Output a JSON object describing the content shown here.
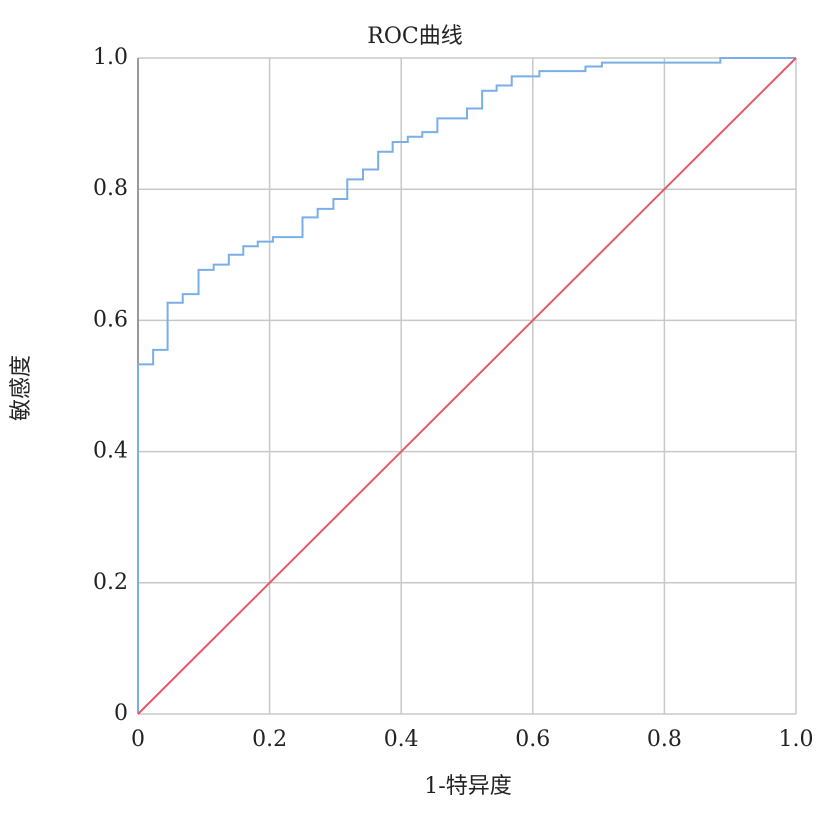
{
  "chart_data": {
    "type": "line",
    "title": "ROC曲线",
    "x_label": "1-特异度",
    "y_label": "敏感度",
    "xlim": [
      0,
      1
    ],
    "ylim": [
      0,
      1
    ],
    "xticks": [
      0,
      0.2,
      0.4,
      0.6,
      0.8,
      {
        "value": 1,
        "label": "1.0"
      }
    ],
    "yticks": [
      0,
      0.2,
      0.4,
      0.6,
      0.8,
      {
        "value": 1,
        "label": "1.0"
      }
    ],
    "grid": true,
    "series": [
      {
        "color": "#7aaee8",
        "x": [
          0,
          0,
          0.023,
          0.023,
          0.045,
          0.045,
          0.068,
          0.068,
          0.092,
          0.092,
          0.115,
          0.115,
          0.138,
          0.138,
          0.16,
          0.16,
          0.182,
          0.182,
          0.205,
          0.205,
          0.25,
          0.25,
          0.273,
          0.273,
          0.297,
          0.297,
          0.318,
          0.318,
          0.342,
          0.342,
          0.365,
          0.365,
          0.387,
          0.387,
          0.41,
          0.41,
          0.432,
          0.432,
          0.455,
          0.455,
          0.5,
          0.5,
          0.523,
          0.523,
          0.545,
          0.545,
          0.568,
          0.568,
          0.61,
          0.61,
          0.68,
          0.68,
          0.705,
          0.705,
          0.885,
          0.885,
          1
        ],
        "values": [
          0,
          0.533,
          0.533,
          0.555,
          0.555,
          0.627,
          0.627,
          0.64,
          0.64,
          0.677,
          0.677,
          0.685,
          0.685,
          0.7,
          0.7,
          0.713,
          0.713,
          0.72,
          0.72,
          0.727,
          0.727,
          0.757,
          0.757,
          0.77,
          0.77,
          0.785,
          0.785,
          0.815,
          0.815,
          0.83,
          0.83,
          0.857,
          0.857,
          0.872,
          0.872,
          0.88,
          0.88,
          0.887,
          0.887,
          0.908,
          0.908,
          0.923,
          0.923,
          0.95,
          0.95,
          0.958,
          0.958,
          0.972,
          0.972,
          0.98,
          0.98,
          0.987,
          0.987,
          0.993,
          0.993,
          1,
          1
        ]
      },
      {
        "color": "#e8566a",
        "x": [
          0,
          1
        ],
        "values": [
          0,
          1
        ]
      }
    ]
  }
}
